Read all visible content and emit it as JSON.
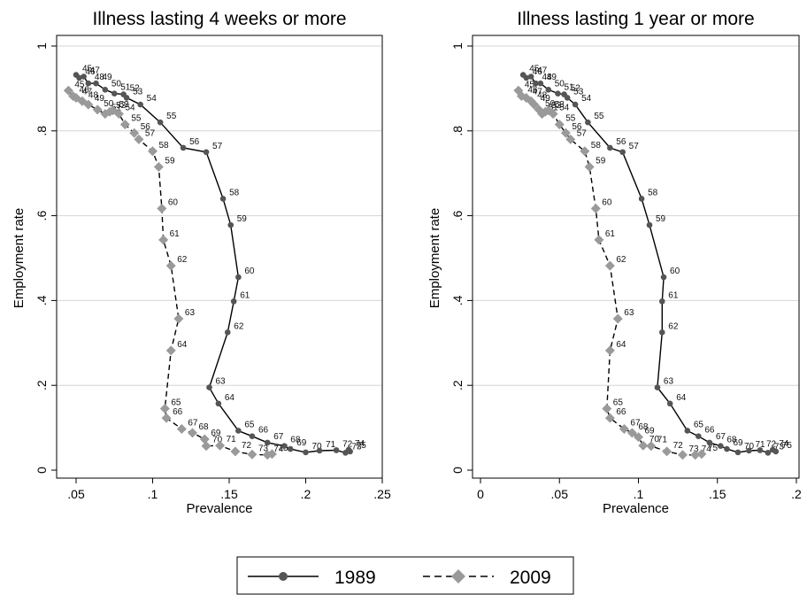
{
  "chart_data": [
    {
      "type": "line",
      "title": "Illness lasting 4 weeks or more",
      "xlabel": "Prevalence",
      "ylabel": "Employment rate",
      "xlim": [
        0.04,
        0.25
      ],
      "ylim": [
        0,
        1
      ],
      "xticks": [
        0.05,
        0.1,
        0.15,
        0.2,
        0.25
      ],
      "xtick_labels": [
        ".05",
        ".1",
        ".15",
        ".2",
        ".25"
      ],
      "yticks": [
        0,
        0.2,
        0.4,
        0.6,
        0.8,
        1
      ],
      "ytick_labels": [
        "0",
        ".2",
        ".4",
        ".6",
        ".8",
        "1"
      ],
      "grid": "horizontal",
      "series": [
        {
          "name": "1989",
          "color": "#555555",
          "marker": "circle",
          "line": "solid",
          "points": [
            {
              "age": "45",
              "x": 0.05,
              "y": 0.932
            },
            {
              "age": "46",
              "x": 0.052,
              "y": 0.925
            },
            {
              "age": "47",
              "x": 0.055,
              "y": 0.928
            },
            {
              "age": "48",
              "x": 0.058,
              "y": 0.912
            },
            {
              "age": "49",
              "x": 0.063,
              "y": 0.912
            },
            {
              "age": "50",
              "x": 0.069,
              "y": 0.897
            },
            {
              "age": "51",
              "x": 0.075,
              "y": 0.888
            },
            {
              "age": "52",
              "x": 0.081,
              "y": 0.886
            },
            {
              "age": "53",
              "x": 0.083,
              "y": 0.878
            },
            {
              "age": "54",
              "x": 0.092,
              "y": 0.862
            },
            {
              "age": "55",
              "x": 0.105,
              "y": 0.82
            },
            {
              "age": "56",
              "x": 0.12,
              "y": 0.76
            },
            {
              "age": "57",
              "x": 0.135,
              "y": 0.75
            },
            {
              "age": "58",
              "x": 0.146,
              "y": 0.64
            },
            {
              "age": "59",
              "x": 0.151,
              "y": 0.578
            },
            {
              "age": "60",
              "x": 0.156,
              "y": 0.455
            },
            {
              "age": "61",
              "x": 0.153,
              "y": 0.398
            },
            {
              "age": "62",
              "x": 0.149,
              "y": 0.325
            },
            {
              "age": "63",
              "x": 0.137,
              "y": 0.195
            },
            {
              "age": "64",
              "x": 0.143,
              "y": 0.157
            },
            {
              "age": "65",
              "x": 0.156,
              "y": 0.093
            },
            {
              "age": "66",
              "x": 0.165,
              "y": 0.08
            },
            {
              "age": "67",
              "x": 0.175,
              "y": 0.065
            },
            {
              "age": "68",
              "x": 0.186,
              "y": 0.057
            },
            {
              "age": "69",
              "x": 0.19,
              "y": 0.05
            },
            {
              "age": "70",
              "x": 0.2,
              "y": 0.042
            },
            {
              "age": "71",
              "x": 0.209,
              "y": 0.046
            },
            {
              "age": "72",
              "x": 0.22,
              "y": 0.047
            },
            {
              "age": "73",
              "x": 0.226,
              "y": 0.041
            },
            {
              "age": "74",
              "x": 0.228,
              "y": 0.048
            },
            {
              "age": "75",
              "x": 0.229,
              "y": 0.044
            }
          ]
        },
        {
          "name": "2009",
          "color": "#9a9a9a",
          "marker": "diamond",
          "line": "dashed",
          "points": [
            {
              "age": "45",
              "x": 0.045,
              "y": 0.895
            },
            {
              "age": "46",
              "x": 0.048,
              "y": 0.882
            },
            {
              "age": "47",
              "x": 0.05,
              "y": 0.878
            },
            {
              "age": "48",
              "x": 0.054,
              "y": 0.87
            },
            {
              "age": "49",
              "x": 0.058,
              "y": 0.862
            },
            {
              "age": "50",
              "x": 0.064,
              "y": 0.85
            },
            {
              "age": "51",
              "x": 0.069,
              "y": 0.84
            },
            {
              "age": "52",
              "x": 0.072,
              "y": 0.845
            },
            {
              "age": "53",
              "x": 0.074,
              "y": 0.848
            },
            {
              "age": "54",
              "x": 0.078,
              "y": 0.84
            },
            {
              "age": "55",
              "x": 0.082,
              "y": 0.815
            },
            {
              "age": "56",
              "x": 0.088,
              "y": 0.795
            },
            {
              "age": "57",
              "x": 0.091,
              "y": 0.78
            },
            {
              "age": "58",
              "x": 0.1,
              "y": 0.752
            },
            {
              "age": "59",
              "x": 0.104,
              "y": 0.715
            },
            {
              "age": "60",
              "x": 0.106,
              "y": 0.617
            },
            {
              "age": "61",
              "x": 0.107,
              "y": 0.543
            },
            {
              "age": "62",
              "x": 0.112,
              "y": 0.482
            },
            {
              "age": "63",
              "x": 0.117,
              "y": 0.357
            },
            {
              "age": "64",
              "x": 0.112,
              "y": 0.282
            },
            {
              "age": "65",
              "x": 0.108,
              "y": 0.145
            },
            {
              "age": "66",
              "x": 0.109,
              "y": 0.123
            },
            {
              "age": "67",
              "x": 0.119,
              "y": 0.097
            },
            {
              "age": "68",
              "x": 0.126,
              "y": 0.088
            },
            {
              "age": "69",
              "x": 0.134,
              "y": 0.073
            },
            {
              "age": "70",
              "x": 0.135,
              "y": 0.057
            },
            {
              "age": "71",
              "x": 0.144,
              "y": 0.058
            },
            {
              "age": "72",
              "x": 0.154,
              "y": 0.044
            },
            {
              "age": "73",
              "x": 0.165,
              "y": 0.037
            },
            {
              "age": "74",
              "x": 0.175,
              "y": 0.036
            },
            {
              "age": "75",
              "x": 0.178,
              "y": 0.038
            }
          ]
        }
      ]
    },
    {
      "type": "line",
      "title": "Illness lasting 1 year or more",
      "xlabel": "Prevalence",
      "ylabel": "Employment rate",
      "xlim": [
        0,
        0.2
      ],
      "ylim": [
        0,
        1
      ],
      "xticks": [
        0,
        0.05,
        0.1,
        0.15,
        0.2
      ],
      "xtick_labels": [
        "0",
        ".05",
        ".1",
        ".15",
        ".2"
      ],
      "yticks": [
        0,
        0.2,
        0.4,
        0.6,
        0.8,
        1
      ],
      "ytick_labels": [
        "0",
        ".2",
        ".4",
        ".6",
        ".8",
        "1"
      ],
      "grid": "horizontal",
      "series": [
        {
          "name": "1989",
          "color": "#555555",
          "marker": "circle",
          "line": "solid",
          "points": [
            {
              "age": "45",
              "x": 0.027,
              "y": 0.932
            },
            {
              "age": "46",
              "x": 0.029,
              "y": 0.925
            },
            {
              "age": "47",
              "x": 0.032,
              "y": 0.928
            },
            {
              "age": "48",
              "x": 0.035,
              "y": 0.912
            },
            {
              "age": "49",
              "x": 0.038,
              "y": 0.912
            },
            {
              "age": "50",
              "x": 0.043,
              "y": 0.897
            },
            {
              "age": "51",
              "x": 0.049,
              "y": 0.888
            },
            {
              "age": "52",
              "x": 0.053,
              "y": 0.886
            },
            {
              "age": "53",
              "x": 0.055,
              "y": 0.878
            },
            {
              "age": "54",
              "x": 0.06,
              "y": 0.862
            },
            {
              "age": "55",
              "x": 0.068,
              "y": 0.82
            },
            {
              "age": "56",
              "x": 0.082,
              "y": 0.76
            },
            {
              "age": "57",
              "x": 0.09,
              "y": 0.75
            },
            {
              "age": "58",
              "x": 0.102,
              "y": 0.64
            },
            {
              "age": "59",
              "x": 0.107,
              "y": 0.578
            },
            {
              "age": "60",
              "x": 0.116,
              "y": 0.455
            },
            {
              "age": "61",
              "x": 0.115,
              "y": 0.398
            },
            {
              "age": "62",
              "x": 0.115,
              "y": 0.325
            },
            {
              "age": "63",
              "x": 0.112,
              "y": 0.195
            },
            {
              "age": "64",
              "x": 0.12,
              "y": 0.157
            },
            {
              "age": "65",
              "x": 0.131,
              "y": 0.093
            },
            {
              "age": "66",
              "x": 0.138,
              "y": 0.08
            },
            {
              "age": "67",
              "x": 0.145,
              "y": 0.065
            },
            {
              "age": "68",
              "x": 0.152,
              "y": 0.057
            },
            {
              "age": "69",
              "x": 0.156,
              "y": 0.05
            },
            {
              "age": "70",
              "x": 0.163,
              "y": 0.042
            },
            {
              "age": "71",
              "x": 0.17,
              "y": 0.046
            },
            {
              "age": "72",
              "x": 0.177,
              "y": 0.047
            },
            {
              "age": "73",
              "x": 0.182,
              "y": 0.041
            },
            {
              "age": "74",
              "x": 0.185,
              "y": 0.048
            },
            {
              "age": "75",
              "x": 0.187,
              "y": 0.044
            }
          ]
        },
        {
          "name": "2009",
          "color": "#9a9a9a",
          "marker": "diamond",
          "line": "dashed",
          "points": [
            {
              "age": "45",
              "x": 0.024,
              "y": 0.895
            },
            {
              "age": "46",
              "x": 0.026,
              "y": 0.882
            },
            {
              "age": "47",
              "x": 0.029,
              "y": 0.878
            },
            {
              "age": "48",
              "x": 0.032,
              "y": 0.87
            },
            {
              "age": "49",
              "x": 0.034,
              "y": 0.862
            },
            {
              "age": "50",
              "x": 0.037,
              "y": 0.85
            },
            {
              "age": "51",
              "x": 0.039,
              "y": 0.84
            },
            {
              "age": "52",
              "x": 0.041,
              "y": 0.845
            },
            {
              "age": "53",
              "x": 0.043,
              "y": 0.848
            },
            {
              "age": "54",
              "x": 0.046,
              "y": 0.84
            },
            {
              "age": "55",
              "x": 0.05,
              "y": 0.815
            },
            {
              "age": "56",
              "x": 0.054,
              "y": 0.795
            },
            {
              "age": "57",
              "x": 0.057,
              "y": 0.78
            },
            {
              "age": "58",
              "x": 0.066,
              "y": 0.752
            },
            {
              "age": "59",
              "x": 0.069,
              "y": 0.715
            },
            {
              "age": "60",
              "x": 0.073,
              "y": 0.617
            },
            {
              "age": "61",
              "x": 0.075,
              "y": 0.543
            },
            {
              "age": "62",
              "x": 0.082,
              "y": 0.482
            },
            {
              "age": "63",
              "x": 0.087,
              "y": 0.357
            },
            {
              "age": "64",
              "x": 0.082,
              "y": 0.282
            },
            {
              "age": "65",
              "x": 0.08,
              "y": 0.145
            },
            {
              "age": "66",
              "x": 0.082,
              "y": 0.123
            },
            {
              "age": "67",
              "x": 0.091,
              "y": 0.097
            },
            {
              "age": "68",
              "x": 0.096,
              "y": 0.088
            },
            {
              "age": "69",
              "x": 0.1,
              "y": 0.078
            },
            {
              "age": "70",
              "x": 0.103,
              "y": 0.058
            },
            {
              "age": "71",
              "x": 0.108,
              "y": 0.057
            },
            {
              "age": "72",
              "x": 0.118,
              "y": 0.044
            },
            {
              "age": "73",
              "x": 0.128,
              "y": 0.036
            },
            {
              "age": "74",
              "x": 0.136,
              "y": 0.036
            },
            {
              "age": "75",
              "x": 0.14,
              "y": 0.038
            }
          ]
        }
      ]
    }
  ],
  "legend": {
    "placement": "bottom-center",
    "items": [
      {
        "label": "1989",
        "line": "solid",
        "marker": "circle",
        "color": "#555555"
      },
      {
        "label": "2009",
        "line": "dashed",
        "marker": "diamond",
        "color": "#9a9a9a"
      }
    ]
  }
}
